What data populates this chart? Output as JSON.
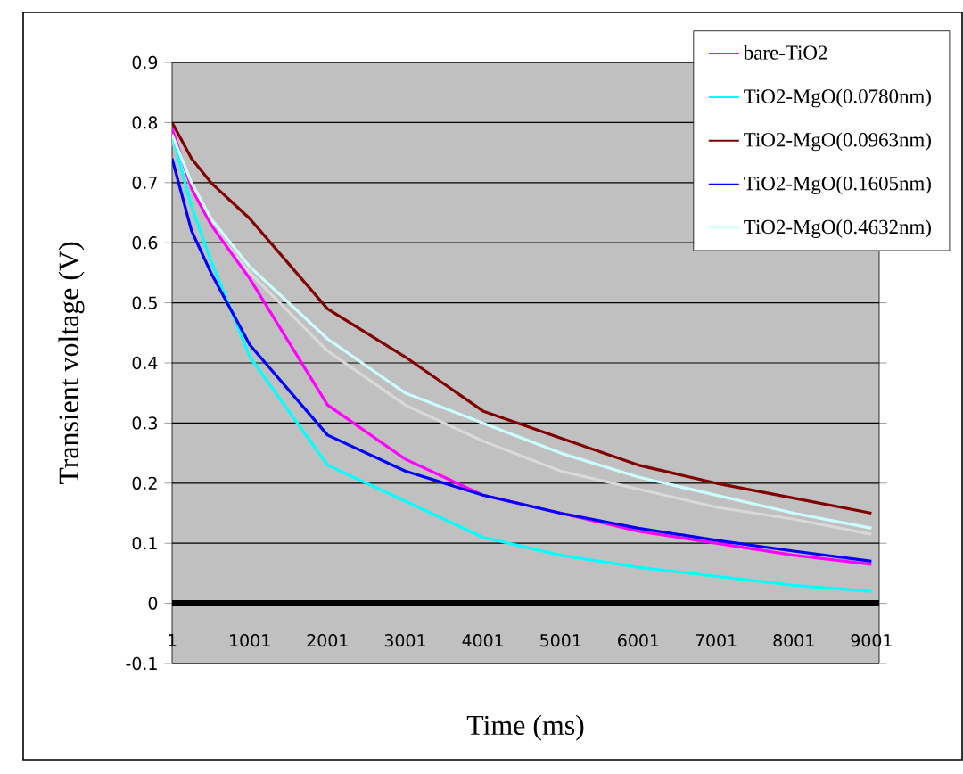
{
  "chart_data": {
    "type": "line",
    "xlabel": "Time (ms)",
    "ylabel": "Transient voltage (V)",
    "x": [
      1,
      251,
      501,
      1001,
      2001,
      3001,
      4001,
      5001,
      6001,
      7001,
      8001,
      9001
    ],
    "xlim": [
      1,
      9100
    ],
    "xticks": [
      1,
      1001,
      2001,
      3001,
      4001,
      5001,
      6001,
      7001,
      8001,
      9001
    ],
    "ylim": [
      -0.1,
      0.9
    ],
    "yticks": [
      -0.1,
      0,
      0.1,
      0.2,
      0.3,
      0.4,
      0.5,
      0.6,
      0.7,
      0.8,
      0.9
    ],
    "grid": "y",
    "legend": "top right",
    "ref_lines": [
      {
        "axis": "y",
        "value": 0,
        "color": "#000000"
      }
    ],
    "series": [
      {
        "color": "#d9d9d9",
        "values": [
          0.77,
          0.69,
          0.63,
          0.55,
          0.42,
          0.33,
          0.27,
          0.22,
          0.19,
          0.16,
          0.14,
          0.115
        ]
      },
      {
        "name": "bare-TiO2",
        "color": "#ff00ff",
        "values": [
          0.79,
          0.69,
          0.63,
          0.54,
          0.33,
          0.24,
          0.18,
          0.15,
          0.12,
          0.1,
          0.08,
          0.065
        ]
      },
      {
        "name": "TiO2-MgO(0.0780nm)",
        "color": "#00ffff",
        "values": [
          0.78,
          0.66,
          0.57,
          0.41,
          0.23,
          0.17,
          0.11,
          0.08,
          0.06,
          0.045,
          0.03,
          0.02
        ]
      },
      {
        "name": "TiO2-MgO(0.0963nm)",
        "color": "#800000",
        "values": [
          0.8,
          0.74,
          0.7,
          0.64,
          0.49,
          0.41,
          0.32,
          0.275,
          0.23,
          0.2,
          0.175,
          0.15
        ]
      },
      {
        "name": "TiO2-MgO(0.1605nm)",
        "color": "#0000ff",
        "values": [
          0.74,
          0.62,
          0.55,
          0.43,
          0.28,
          0.22,
          0.18,
          0.15,
          0.125,
          0.105,
          0.087,
          0.07
        ]
      },
      {
        "name": "TiO2-MgO(0.4632nm)",
        "color": "#ccffff",
        "values": [
          0.78,
          0.7,
          0.64,
          0.56,
          0.44,
          0.35,
          0.3,
          0.25,
          0.21,
          0.18,
          0.15,
          0.125
        ]
      }
    ]
  }
}
